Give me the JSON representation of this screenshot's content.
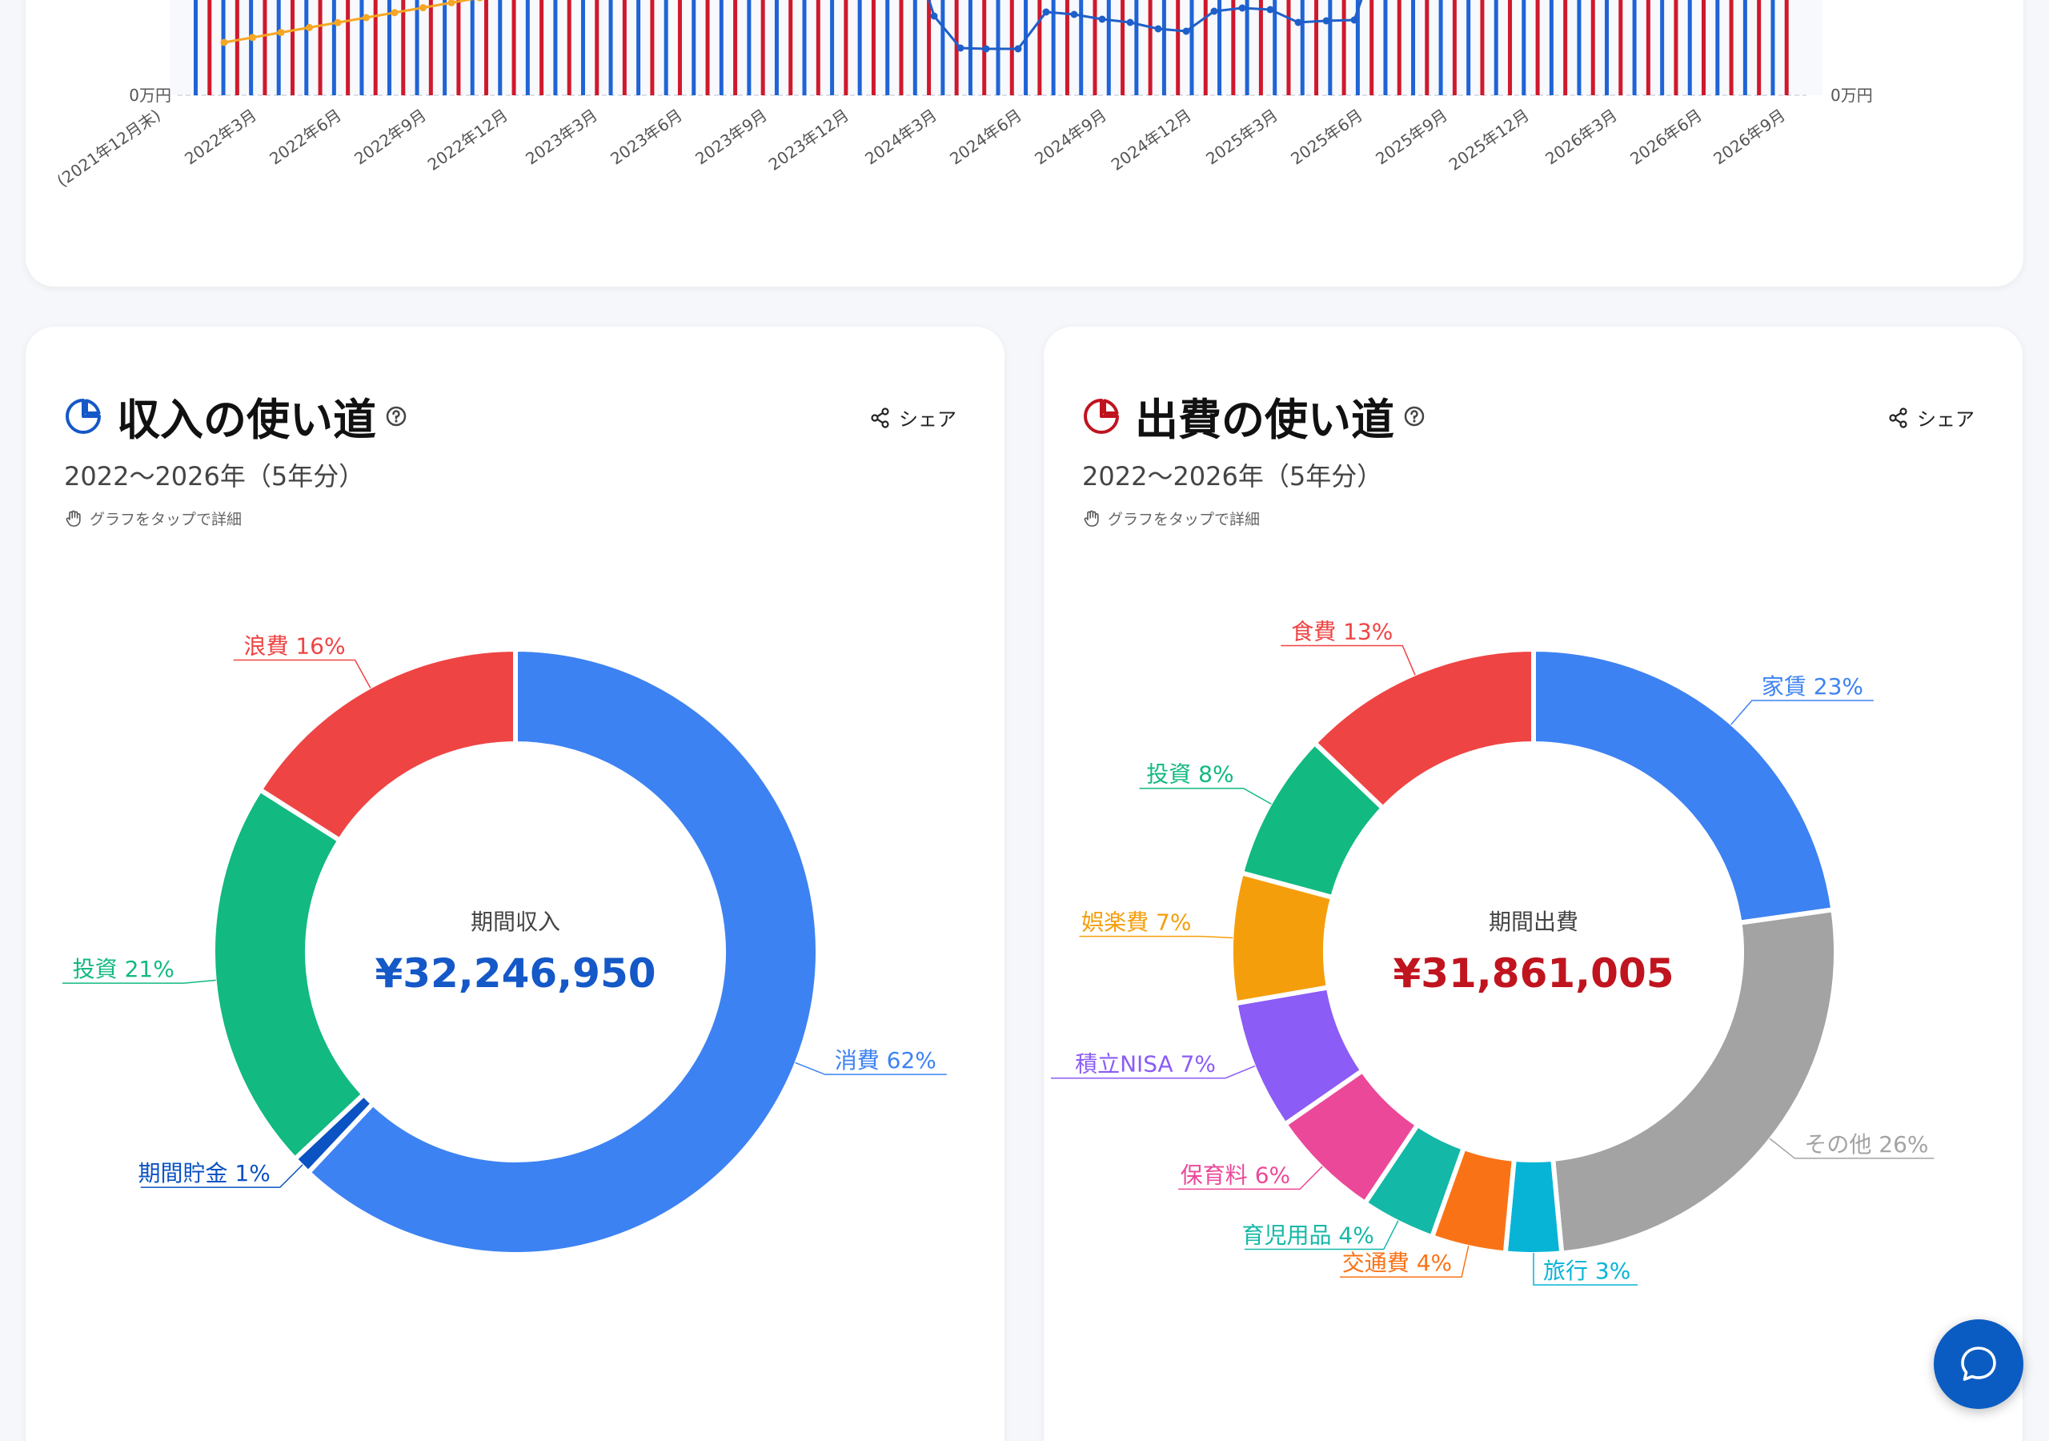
{
  "top_chart": {
    "left_axis_zero": "0万円",
    "right_axis_zero": "0万円",
    "x_labels": [
      "(2021年12月末)",
      "2022年3月",
      "2022年6月",
      "2022年9月",
      "2022年12月",
      "2023年3月",
      "2023年6月",
      "2023年9月",
      "2023年12月",
      "2024年3月",
      "2024年6月",
      "2024年9月",
      "2024年12月",
      "2025年3月",
      "2025年6月",
      "2025年9月",
      "2025年12月",
      "2026年3月",
      "2026年6月",
      "2026年9月"
    ],
    "colors": {
      "bar_income": "#1f63d6",
      "bar_expense": "#d0182c",
      "line_saving": "#f5a623",
      "line_balance": "#1f5fc9"
    }
  },
  "income": {
    "title": "収入の使い道",
    "share_label": "シェア",
    "period": "2022〜2026年（5年分）",
    "hint": "グラフをタップで詳細",
    "center_label": "期間収入",
    "center_value": "¥32,246,950",
    "accent": "#1558c7",
    "icon": "pie-chart-icon"
  },
  "expense": {
    "title": "出費の使い道",
    "share_label": "シェア",
    "period": "2022〜2026年（5年分）",
    "hint": "グラフをタップで詳細",
    "center_label": "期間出費",
    "center_value": "¥31,861,005",
    "accent": "#c0141f",
    "icon": "pie-chart-icon"
  },
  "chart_data": [
    {
      "type": "pie",
      "slices": [
        {
          "name": "消費",
          "value": 62,
          "label": "消費 62%",
          "color": "#3d82f2"
        },
        {
          "name": "期間貯金",
          "value": 1,
          "label": "期間貯金 1%",
          "color": "#0b52c2"
        },
        {
          "name": "投資",
          "value": 21,
          "label": "投資 21%",
          "color": "#12b981"
        },
        {
          "name": "浪費",
          "value": 16,
          "label": "浪費 16%",
          "color": "#ef4444"
        }
      ]
    },
    {
      "type": "pie",
      "slices": [
        {
          "name": "家賃",
          "value": 23,
          "label": "家賃 23%",
          "color": "#3d82f2"
        },
        {
          "name": "その他",
          "value": 26,
          "label": "その他 26%",
          "color": "#a3a3a3"
        },
        {
          "name": "旅行",
          "value": 3,
          "label": "旅行 3%",
          "color": "#08b4d6"
        },
        {
          "name": "交通費",
          "value": 4,
          "label": "交通費 4%",
          "color": "#f97316"
        },
        {
          "name": "育児用品",
          "value": 4,
          "label": "育児用品 4%",
          "color": "#14b8a6"
        },
        {
          "name": "保育料",
          "value": 6,
          "label": "保育料 6%",
          "color": "#ec4899"
        },
        {
          "name": "積立NISA",
          "value": 7,
          "label": "積立NISA 7%",
          "color": "#8b5cf6"
        },
        {
          "name": "娯楽費",
          "value": 7,
          "label": "娯楽費 7%",
          "color": "#f59e0b"
        },
        {
          "name": "投資",
          "value": 8,
          "label": "投資 8%",
          "color": "#12b981"
        },
        {
          "name": "食費",
          "value": 13,
          "label": "食費 13%",
          "color": "#ef4444"
        }
      ]
    }
  ]
}
